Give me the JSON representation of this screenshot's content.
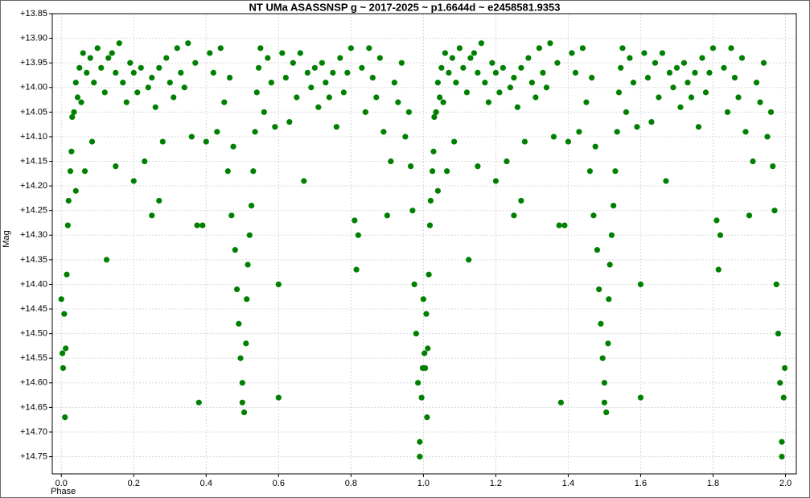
{
  "chart_data": {
    "type": "scatter",
    "title": "NT UMa ASASSNSP g ~ 2017-2025 ~ p1.6644d ~ e2458581.9353",
    "x_label": "Phase",
    "y_label": "Mag",
    "invert_y": true,
    "grid": true,
    "xlim": [
      -0.025,
      2.03
    ],
    "ylim": [
      13.85,
      14.785
    ],
    "xticks": [
      {
        "value": 0,
        "label": "0.0"
      },
      0.2,
      0.4,
      0.6,
      0.8,
      {
        "value": 1,
        "label": "1.0"
      },
      1.2,
      1.4,
      1.6,
      1.8,
      {
        "value": 2,
        "label": "2.0"
      }
    ],
    "yticks": [
      {
        "value": 13.85,
        "label": "+13.85"
      },
      {
        "value": 13.9,
        "label": "+13.90"
      },
      {
        "value": 13.95,
        "label": "+13.95"
      },
      {
        "value": 14.0,
        "label": "+14.00"
      },
      {
        "value": 14.05,
        "label": "+14.05"
      },
      {
        "value": 14.1,
        "label": "+14.10"
      },
      {
        "value": 14.15,
        "label": "+14.15"
      },
      {
        "value": 14.2,
        "label": "+14.20"
      },
      {
        "value": 14.25,
        "label": "+14.25"
      },
      {
        "value": 14.3,
        "label": "+14.30"
      },
      {
        "value": 14.35,
        "label": "+14.35"
      },
      {
        "value": 14.4,
        "label": "+14.40"
      },
      {
        "value": 14.45,
        "label": "+14.45"
      },
      {
        "value": 14.5,
        "label": "+14.50"
      },
      {
        "value": 14.55,
        "label": "+14.55"
      },
      {
        "value": 14.6,
        "label": "+14.60"
      },
      {
        "value": 14.65,
        "label": "+14.65"
      },
      {
        "value": 14.7,
        "label": "+14.70"
      },
      {
        "value": 14.75,
        "label": "+14.75"
      }
    ],
    "series": [
      {
        "color": "#008000",
        "x": [
          0.0,
          0.003,
          0.005,
          0.008,
          0.01,
          0.012,
          0.015,
          0.018,
          0.02,
          0.025,
          0.028,
          0.03,
          0.035,
          0.04,
          0.04,
          0.045,
          0.05,
          0.055,
          0.06,
          0.065,
          0.07,
          0.08,
          0.085,
          0.09,
          0.1,
          0.11,
          0.12,
          0.125,
          0.13,
          0.14,
          0.15,
          0.15,
          0.16,
          0.17,
          0.18,
          0.19,
          0.2,
          0.2,
          0.21,
          0.22,
          0.23,
          0.24,
          0.25,
          0.25,
          0.26,
          0.27,
          0.27,
          0.28,
          0.29,
          0.3,
          0.31,
          0.32,
          0.33,
          0.34,
          0.35,
          0.36,
          0.37,
          0.375,
          0.38,
          0.39,
          0.4,
          0.41,
          0.42,
          0.43,
          0.44,
          0.45,
          0.46,
          0.465,
          0.47,
          0.475,
          0.48,
          0.485,
          0.49,
          0.495,
          0.5,
          0.5,
          0.505,
          0.51,
          0.512,
          0.515,
          0.52,
          0.525,
          0.53,
          0.535,
          0.54,
          0.545,
          0.55,
          0.56,
          0.57,
          0.58,
          0.59,
          0.6,
          0.6,
          0.61,
          0.62,
          0.63,
          0.64,
          0.65,
          0.66,
          0.67,
          0.68,
          0.69,
          0.7,
          0.71,
          0.72,
          0.73,
          0.74,
          0.75,
          0.76,
          0.77,
          0.78,
          0.79,
          0.8,
          0.81,
          0.815,
          0.82,
          0.83,
          0.84,
          0.85,
          0.86,
          0.87,
          0.88,
          0.89,
          0.9,
          0.91,
          0.92,
          0.93,
          0.94,
          0.95,
          0.96,
          0.965,
          0.97,
          0.975,
          0.98,
          0.985,
          0.99,
          0.99,
          0.995,
          0.998,
          1.0,
          1.003,
          1.005,
          1.008,
          1.01,
          1.012,
          1.015,
          1.018,
          1.02,
          1.025,
          1.028,
          1.03,
          1.035,
          1.04,
          1.04,
          1.045,
          1.05,
          1.055,
          1.06,
          1.065,
          1.07,
          1.08,
          1.085,
          1.09,
          1.1,
          1.11,
          1.12,
          1.125,
          1.13,
          1.14,
          1.15,
          1.15,
          1.16,
          1.17,
          1.18,
          1.19,
          1.2,
          1.2,
          1.21,
          1.22,
          1.23,
          1.24,
          1.25,
          1.25,
          1.26,
          1.27,
          1.27,
          1.28,
          1.29,
          1.3,
          1.31,
          1.32,
          1.33,
          1.34,
          1.35,
          1.36,
          1.37,
          1.375,
          1.38,
          1.39,
          1.4,
          1.41,
          1.42,
          1.43,
          1.44,
          1.45,
          1.46,
          1.465,
          1.47,
          1.475,
          1.48,
          1.485,
          1.49,
          1.495,
          1.5,
          1.5,
          1.505,
          1.51,
          1.512,
          1.515,
          1.52,
          1.525,
          1.53,
          1.535,
          1.54,
          1.545,
          1.55,
          1.56,
          1.57,
          1.58,
          1.59,
          1.6,
          1.6,
          1.61,
          1.62,
          1.63,
          1.64,
          1.65,
          1.66,
          1.67,
          1.68,
          1.69,
          1.7,
          1.71,
          1.72,
          1.73,
          1.74,
          1.75,
          1.76,
          1.77,
          1.78,
          1.79,
          1.8,
          1.81,
          1.815,
          1.82,
          1.83,
          1.84,
          1.85,
          1.86,
          1.87,
          1.88,
          1.89,
          1.9,
          1.91,
          1.92,
          1.93,
          1.94,
          1.95,
          1.96,
          1.965,
          1.97,
          1.975,
          1.98,
          1.985,
          1.99,
          1.99,
          1.995,
          1.998
        ],
        "values": [
          14.43,
          14.54,
          14.57,
          14.46,
          14.67,
          14.53,
          14.38,
          14.28,
          14.23,
          14.17,
          14.13,
          14.06,
          14.05,
          14.21,
          13.99,
          14.02,
          13.96,
          14.03,
          13.93,
          14.17,
          13.97,
          13.94,
          14.11,
          13.99,
          13.92,
          13.96,
          14.01,
          14.35,
          13.94,
          13.93,
          14.16,
          13.97,
          13.91,
          13.99,
          14.03,
          13.95,
          14.19,
          13.97,
          14.01,
          13.96,
          14.15,
          14.0,
          14.26,
          13.98,
          14.04,
          14.23,
          13.96,
          14.11,
          13.94,
          13.99,
          14.02,
          13.92,
          13.97,
          14.0,
          13.91,
          14.1,
          13.95,
          14.28,
          14.64,
          14.28,
          14.11,
          13.93,
          13.97,
          14.09,
          13.92,
          14.03,
          14.17,
          13.98,
          14.26,
          14.12,
          14.33,
          14.41,
          14.48,
          14.55,
          14.6,
          14.64,
          14.66,
          14.52,
          14.43,
          14.36,
          14.3,
          14.24,
          14.17,
          14.09,
          14.01,
          13.96,
          13.92,
          14.05,
          13.94,
          13.99,
          14.08,
          14.4,
          14.63,
          13.93,
          13.98,
          14.07,
          13.95,
          14.02,
          13.93,
          14.19,
          13.97,
          14.0,
          13.96,
          14.04,
          13.95,
          13.99,
          14.02,
          13.97,
          14.08,
          13.94,
          14.01,
          13.97,
          13.92,
          14.27,
          14.37,
          14.3,
          13.96,
          14.05,
          13.92,
          13.98,
          14.02,
          13.94,
          14.09,
          14.26,
          14.15,
          13.99,
          14.03,
          13.95,
          14.1,
          14.05,
          14.16,
          14.25,
          14.4,
          14.5,
          14.6,
          14.72,
          14.75,
          14.63,
          14.57,
          14.43,
          14.54,
          14.57,
          14.46,
          14.67,
          14.53,
          14.38,
          14.28,
          14.23,
          14.17,
          14.13,
          14.06,
          14.05,
          14.21,
          13.99,
          14.02,
          13.96,
          14.03,
          13.93,
          14.17,
          13.97,
          13.94,
          14.11,
          13.99,
          13.92,
          13.96,
          14.01,
          14.35,
          13.94,
          13.93,
          14.16,
          13.97,
          13.91,
          13.99,
          14.03,
          13.95,
          14.19,
          13.97,
          14.01,
          13.96,
          14.15,
          14.0,
          14.26,
          13.98,
          14.04,
          14.23,
          13.96,
          14.11,
          13.94,
          13.99,
          14.02,
          13.92,
          13.97,
          14.0,
          13.91,
          14.1,
          13.95,
          14.28,
          14.64,
          14.28,
          14.11,
          13.93,
          13.97,
          14.09,
          13.92,
          14.03,
          14.17,
          13.98,
          14.26,
          14.12,
          14.33,
          14.41,
          14.48,
          14.55,
          14.6,
          14.64,
          14.66,
          14.52,
          14.43,
          14.36,
          14.3,
          14.24,
          14.17,
          14.09,
          14.01,
          13.96,
          13.92,
          14.05,
          13.94,
          13.99,
          14.08,
          14.4,
          14.63,
          13.93,
          13.98,
          14.07,
          13.95,
          14.02,
          13.93,
          14.19,
          13.97,
          14.0,
          13.96,
          14.04,
          13.95,
          13.99,
          14.02,
          13.97,
          14.08,
          13.94,
          14.01,
          13.97,
          13.92,
          14.27,
          14.37,
          14.3,
          13.96,
          14.05,
          13.92,
          13.98,
          14.02,
          13.94,
          14.09,
          14.26,
          14.15,
          13.99,
          14.03,
          13.95,
          14.1,
          14.05,
          14.16,
          14.25,
          14.4,
          14.5,
          14.6,
          14.72,
          14.75,
          14.63,
          14.57
        ]
      }
    ]
  }
}
